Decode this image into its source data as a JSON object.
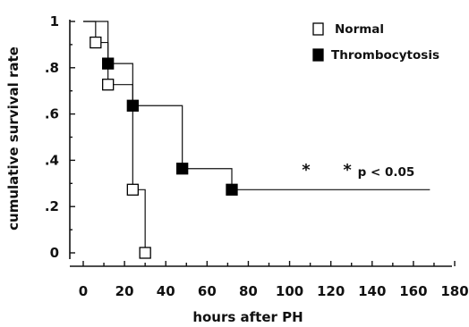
{
  "chart_data": {
    "type": "line",
    "xlabel": "hours  after  PH",
    "ylabel": "cumulative survival rate",
    "xlim": [
      0,
      180
    ],
    "ylim": [
      0,
      1
    ],
    "x_ticks": [
      "0",
      "20",
      "40",
      "60",
      "80",
      "100",
      "120",
      "140",
      "160",
      "180"
    ],
    "y_ticks": [
      "0",
      ".2",
      ".4",
      ".6",
      ".8",
      "1"
    ],
    "legend_position": "top-right",
    "series": [
      {
        "name": "Normal",
        "marker": "open-square",
        "color": "#000000",
        "steps": [
          [
            0,
            1.0
          ],
          [
            6,
            0.909
          ],
          [
            12,
            0.727
          ],
          [
            24,
            0.273
          ],
          [
            30,
            0.0
          ]
        ],
        "markers": [
          [
            6,
            0.909
          ],
          [
            12,
            0.727
          ],
          [
            24,
            0.273
          ],
          [
            30,
            0.0
          ]
        ]
      },
      {
        "name": "Thrombocytosis",
        "marker": "filled-square",
        "color": "#000000",
        "steps": [
          [
            0,
            1.0
          ],
          [
            12,
            0.818
          ],
          [
            24,
            0.636
          ],
          [
            48,
            0.364
          ],
          [
            72,
            0.273
          ],
          [
            168,
            0.273
          ]
        ],
        "markers": [
          [
            12,
            0.818
          ],
          [
            24,
            0.636
          ],
          [
            48,
            0.364
          ],
          [
            72,
            0.273
          ]
        ]
      }
    ],
    "annotations": [
      {
        "text": "*",
        "x": 108,
        "y": 0.37
      },
      {
        "text": "*",
        "x": 128,
        "y": 0.37
      },
      {
        "text": "p < 0.05",
        "x": 133,
        "y": 0.345
      }
    ]
  }
}
